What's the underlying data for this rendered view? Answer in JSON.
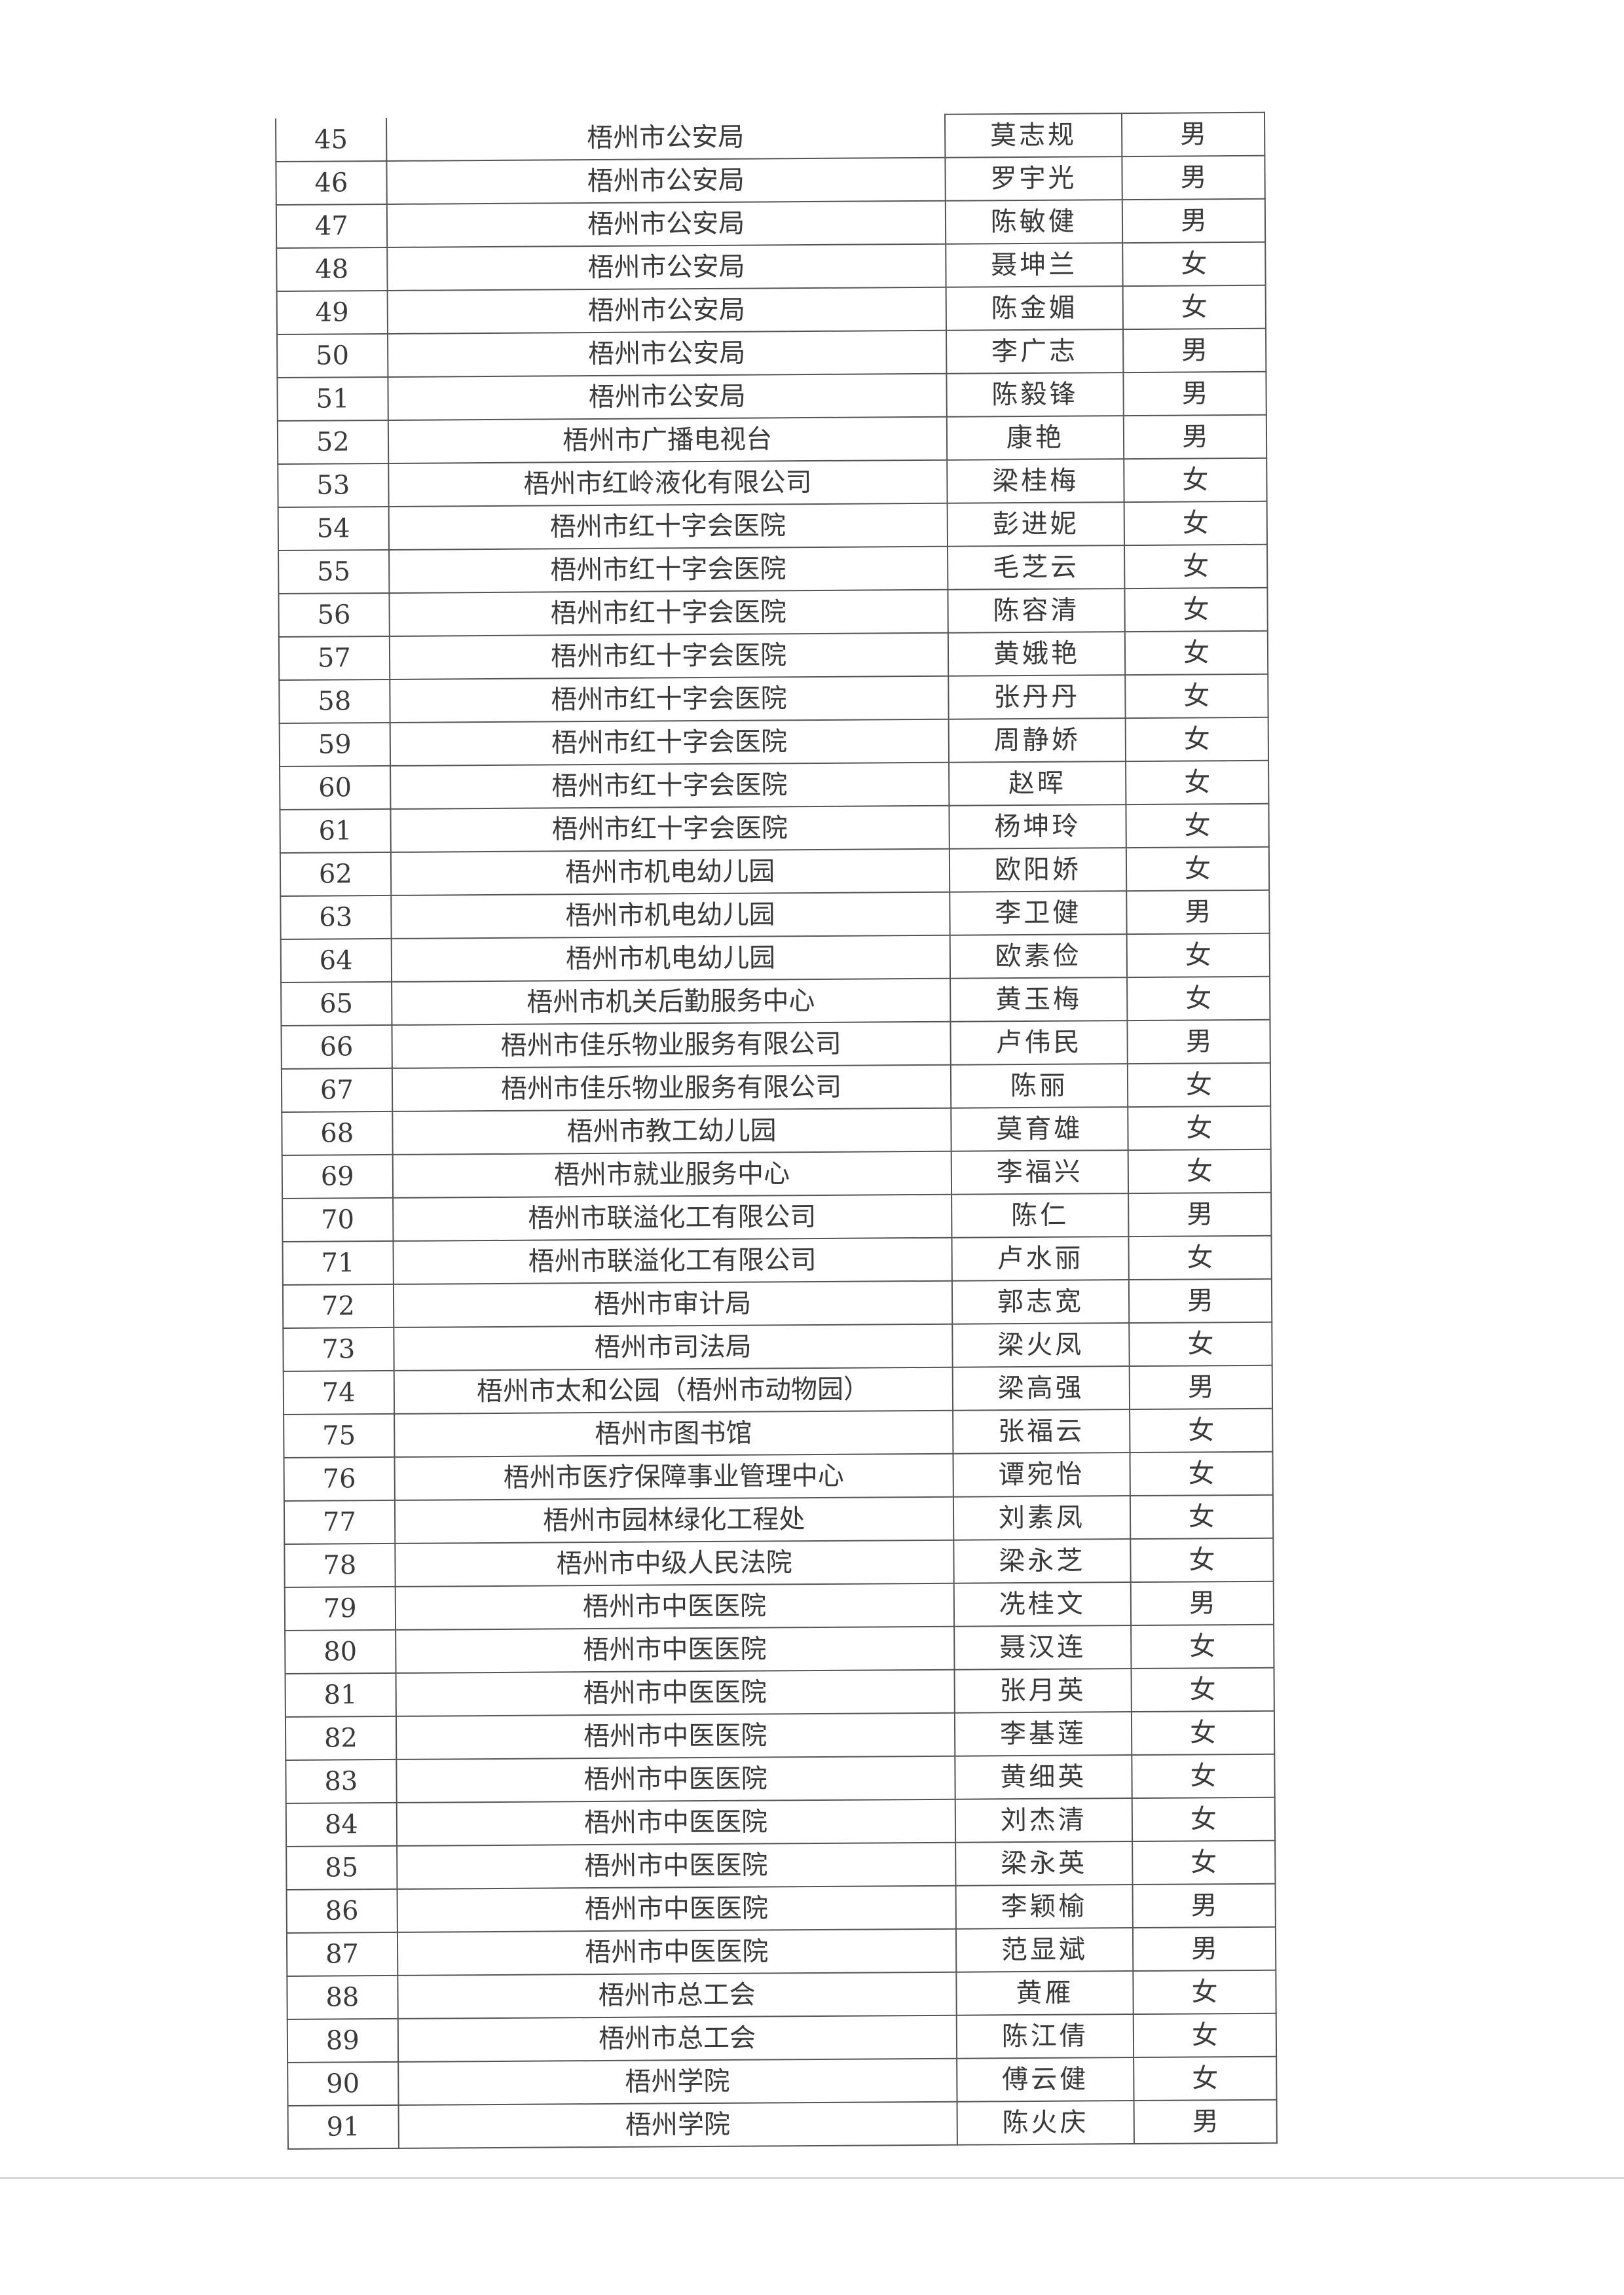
{
  "rows": [
    {
      "no": "45",
      "unit": "梧州市公安局",
      "name": "莫志规",
      "gender": "男"
    },
    {
      "no": "46",
      "unit": "梧州市公安局",
      "name": "罗宇光",
      "gender": "男"
    },
    {
      "no": "47",
      "unit": "梧州市公安局",
      "name": "陈敏健",
      "gender": "男"
    },
    {
      "no": "48",
      "unit": "梧州市公安局",
      "name": "聂坤兰",
      "gender": "女"
    },
    {
      "no": "49",
      "unit": "梧州市公安局",
      "name": "陈金媚",
      "gender": "女"
    },
    {
      "no": "50",
      "unit": "梧州市公安局",
      "name": "李广志",
      "gender": "男"
    },
    {
      "no": "51",
      "unit": "梧州市公安局",
      "name": "陈毅锋",
      "gender": "男"
    },
    {
      "no": "52",
      "unit": "梧州市广播电视台",
      "name": "康艳",
      "gender": "男"
    },
    {
      "no": "53",
      "unit": "梧州市红岭液化有限公司",
      "name": "梁桂梅",
      "gender": "女"
    },
    {
      "no": "54",
      "unit": "梧州市红十字会医院",
      "name": "彭进妮",
      "gender": "女"
    },
    {
      "no": "55",
      "unit": "梧州市红十字会医院",
      "name": "毛芝云",
      "gender": "女"
    },
    {
      "no": "56",
      "unit": "梧州市红十字会医院",
      "name": "陈容清",
      "gender": "女"
    },
    {
      "no": "57",
      "unit": "梧州市红十字会医院",
      "name": "黄娥艳",
      "gender": "女"
    },
    {
      "no": "58",
      "unit": "梧州市红十字会医院",
      "name": "张丹丹",
      "gender": "女"
    },
    {
      "no": "59",
      "unit": "梧州市红十字会医院",
      "name": "周静娇",
      "gender": "女"
    },
    {
      "no": "60",
      "unit": "梧州市红十字会医院",
      "name": "赵晖",
      "gender": "女"
    },
    {
      "no": "61",
      "unit": "梧州市红十字会医院",
      "name": "杨坤玲",
      "gender": "女"
    },
    {
      "no": "62",
      "unit": "梧州市机电幼儿园",
      "name": "欧阳娇",
      "gender": "女"
    },
    {
      "no": "63",
      "unit": "梧州市机电幼儿园",
      "name": "李卫健",
      "gender": "男"
    },
    {
      "no": "64",
      "unit": "梧州市机电幼儿园",
      "name": "欧素俭",
      "gender": "女"
    },
    {
      "no": "65",
      "unit": "梧州市机关后勤服务中心",
      "name": "黄玉梅",
      "gender": "女"
    },
    {
      "no": "66",
      "unit": "梧州市佳乐物业服务有限公司",
      "name": "卢伟民",
      "gender": "男"
    },
    {
      "no": "67",
      "unit": "梧州市佳乐物业服务有限公司",
      "name": "陈丽",
      "gender": "女"
    },
    {
      "no": "68",
      "unit": "梧州市教工幼儿园",
      "name": "莫育雄",
      "gender": "女"
    },
    {
      "no": "69",
      "unit": "梧州市就业服务中心",
      "name": "李福兴",
      "gender": "女"
    },
    {
      "no": "70",
      "unit": "梧州市联溢化工有限公司",
      "name": "陈仁",
      "gender": "男"
    },
    {
      "no": "71",
      "unit": "梧州市联溢化工有限公司",
      "name": "卢水丽",
      "gender": "女"
    },
    {
      "no": "72",
      "unit": "梧州市审计局",
      "name": "郭志宽",
      "gender": "男"
    },
    {
      "no": "73",
      "unit": "梧州市司法局",
      "name": "梁火凤",
      "gender": "女"
    },
    {
      "no": "74",
      "unit": "梧州市太和公园（梧州市动物园）",
      "name": "梁高强",
      "gender": "男"
    },
    {
      "no": "75",
      "unit": "梧州市图书馆",
      "name": "张福云",
      "gender": "女"
    },
    {
      "no": "76",
      "unit": "梧州市医疗保障事业管理中心",
      "name": "谭宛怡",
      "gender": "女"
    },
    {
      "no": "77",
      "unit": "梧州市园林绿化工程处",
      "name": "刘素凤",
      "gender": "女"
    },
    {
      "no": "78",
      "unit": "梧州市中级人民法院",
      "name": "梁永芝",
      "gender": "女"
    },
    {
      "no": "79",
      "unit": "梧州市中医医院",
      "name": "冼桂文",
      "gender": "男"
    },
    {
      "no": "80",
      "unit": "梧州市中医医院",
      "name": "聂汉连",
      "gender": "女"
    },
    {
      "no": "81",
      "unit": "梧州市中医医院",
      "name": "张月英",
      "gender": "女"
    },
    {
      "no": "82",
      "unit": "梧州市中医医院",
      "name": "李基莲",
      "gender": "女"
    },
    {
      "no": "83",
      "unit": "梧州市中医医院",
      "name": "黄细英",
      "gender": "女"
    },
    {
      "no": "84",
      "unit": "梧州市中医医院",
      "name": "刘杰清",
      "gender": "女"
    },
    {
      "no": "85",
      "unit": "梧州市中医医院",
      "name": "梁永英",
      "gender": "女"
    },
    {
      "no": "86",
      "unit": "梧州市中医医院",
      "name": "李颖榆",
      "gender": "男"
    },
    {
      "no": "87",
      "unit": "梧州市中医医院",
      "name": "范显斌",
      "gender": "男"
    },
    {
      "no": "88",
      "unit": "梧州市总工会",
      "name": "黄雁",
      "gender": "女"
    },
    {
      "no": "89",
      "unit": "梧州市总工会",
      "name": "陈江倩",
      "gender": "女"
    },
    {
      "no": "90",
      "unit": "梧州学院",
      "name": "傅云健",
      "gender": "女"
    },
    {
      "no": "91",
      "unit": "梧州学院",
      "name": "陈火庆",
      "gender": "男"
    }
  ]
}
